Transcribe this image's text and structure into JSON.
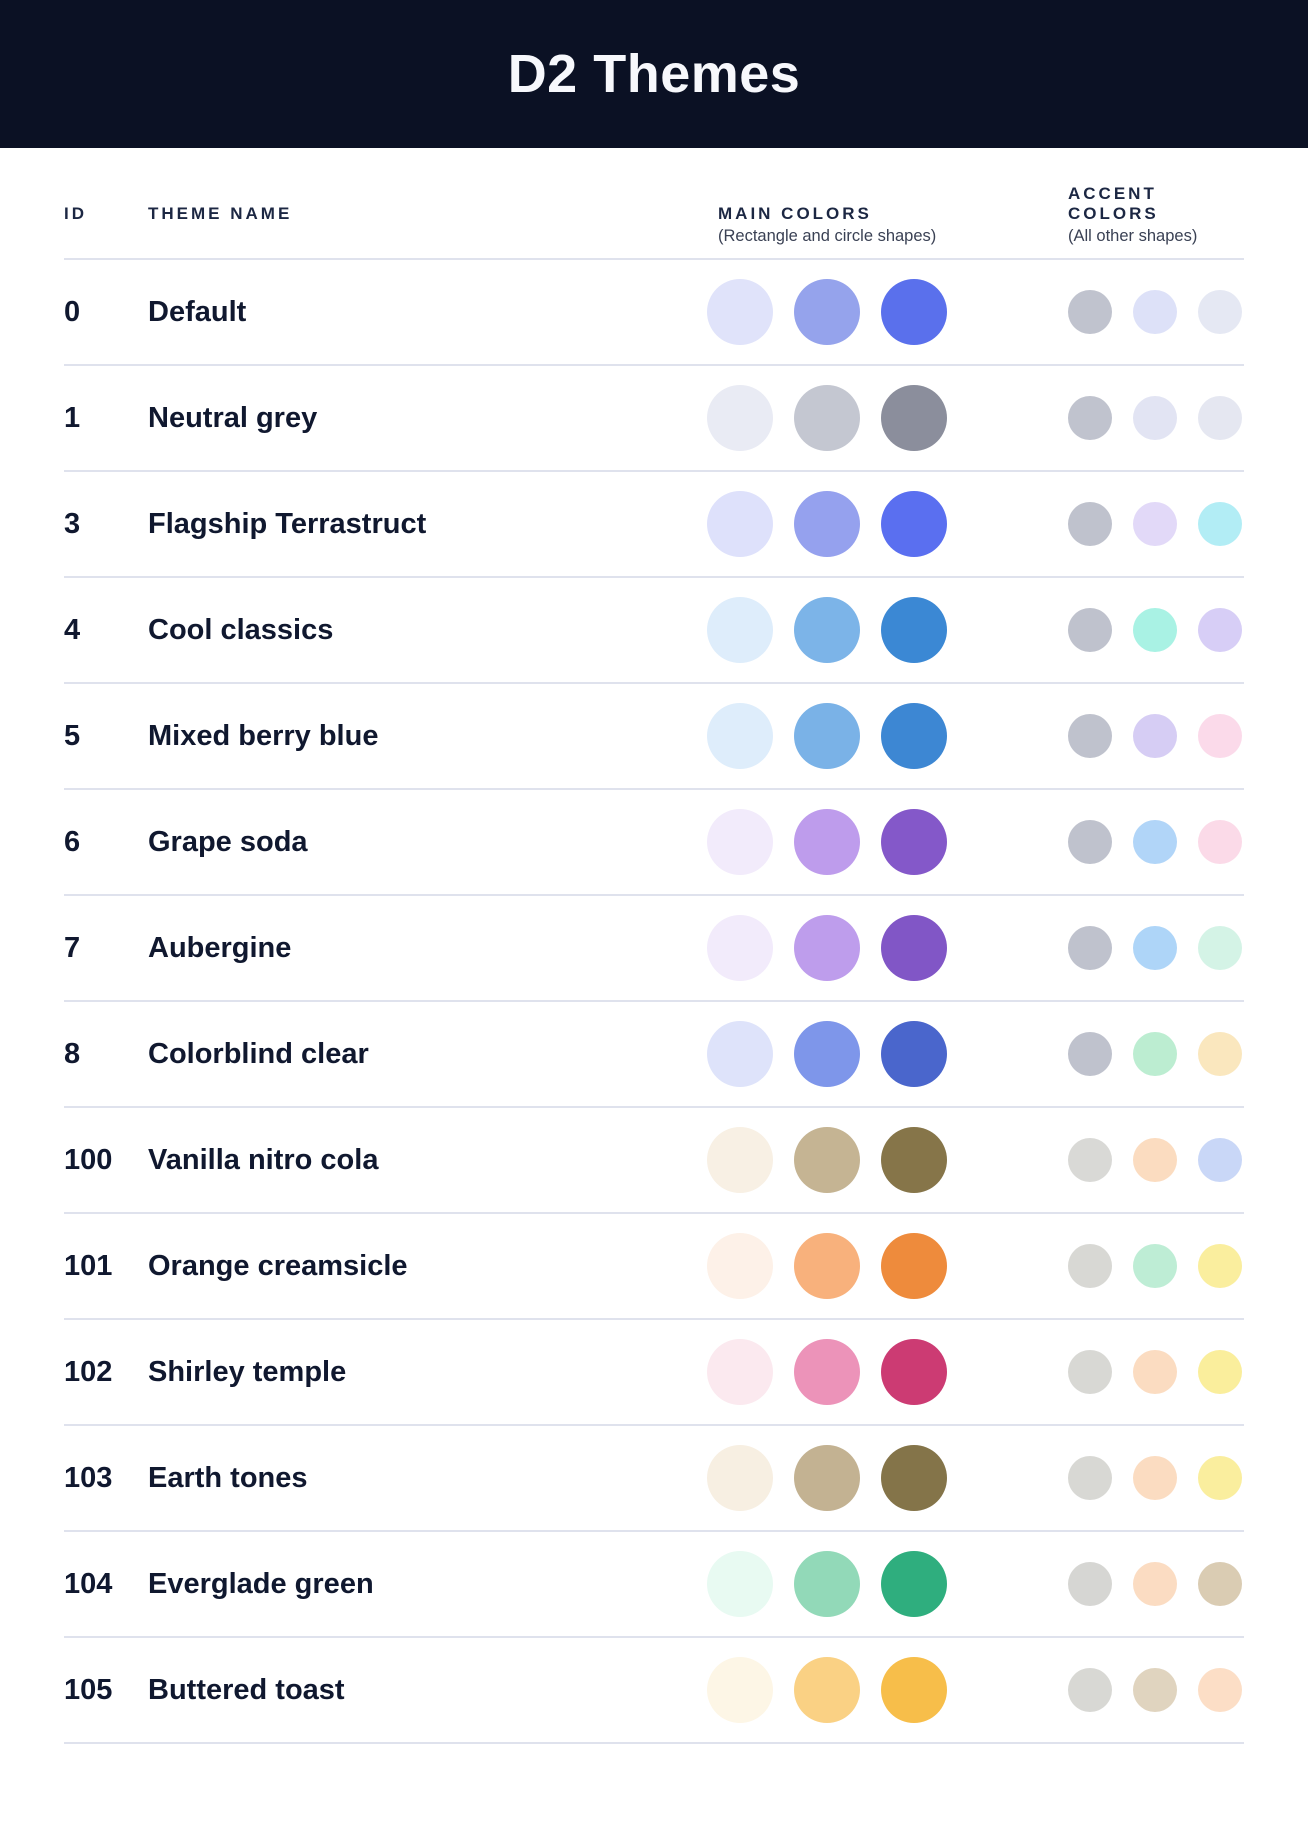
{
  "header": {
    "title": "D2 Themes"
  },
  "colors": {
    "header_bg": "#0B1124",
    "divider": "#DFE2ED",
    "row_text": "#10182F",
    "column_label_text": "#1C2743",
    "subtext": "#3A4154"
  },
  "table": {
    "columns": {
      "id_label": "ID",
      "name_label": "THEME NAME",
      "main_label": "MAIN COLORS",
      "main_sublabel": "(Rectangle and circle shapes)",
      "accent_label": "ACCENT COLORS",
      "accent_sublabel": "(All other shapes)"
    },
    "rows": [
      {
        "id": "0",
        "name": "Default",
        "main": [
          "#E0E3FA",
          "#95A3EC",
          "#5A70EC"
        ],
        "accent": [
          "#C0C3CE",
          "#DDE1F8",
          "#E5E8F3"
        ]
      },
      {
        "id": "1",
        "name": "Neutral grey",
        "main": [
          "#E9EBF4",
          "#C4C7D1",
          "#8B8E9C"
        ],
        "accent": [
          "#C0C3CE",
          "#E2E4F3",
          "#E5E7F1"
        ]
      },
      {
        "id": "3",
        "name": "Flagship Terrastruct",
        "main": [
          "#DEE1FB",
          "#95A1EE",
          "#5A6FF0"
        ],
        "accent": [
          "#BFC2CD",
          "#E2D9F8",
          "#B2EDF5"
        ]
      },
      {
        "id": "4",
        "name": "Cool classics",
        "main": [
          "#DEEDFB",
          "#7CB4E8",
          "#3B88D4"
        ],
        "accent": [
          "#BFC2CD",
          "#A9F2E4",
          "#D7CEF6"
        ]
      },
      {
        "id": "5",
        "name": "Mixed berry blue",
        "main": [
          "#DEEDFB",
          "#7AB2E7",
          "#3D87D3"
        ],
        "accent": [
          "#BFC2CD",
          "#D6CDF4",
          "#FBDAEA"
        ]
      },
      {
        "id": "6",
        "name": "Grape soda",
        "main": [
          "#F2EBFB",
          "#BE9CEC",
          "#8458C9"
        ],
        "accent": [
          "#BFC2CD",
          "#B1D5F8",
          "#FBDAE8"
        ]
      },
      {
        "id": "7",
        "name": "Aubergine",
        "main": [
          "#F2EBFB",
          "#BE9DEC",
          "#8156C6"
        ],
        "accent": [
          "#BFC2CD",
          "#AED5F8",
          "#D4F3E6"
        ]
      },
      {
        "id": "8",
        "name": "Colorblind clear",
        "main": [
          "#DEE3FA",
          "#7E96EA",
          "#4A66CC"
        ],
        "accent": [
          "#BFC2CD",
          "#BCEDD1",
          "#FAE7BE"
        ]
      },
      {
        "id": "100",
        "name": "Vanilla nitro cola",
        "main": [
          "#F8F0E4",
          "#C5B493",
          "#867549"
        ],
        "accent": [
          "#D9D9D6",
          "#FBDCC0",
          "#C9D7F7"
        ]
      },
      {
        "id": "101",
        "name": "Orange creamsicle",
        "main": [
          "#FDF1E8",
          "#F8B17C",
          "#EE8B3C"
        ],
        "accent": [
          "#D8D8D4",
          "#BEEDD5",
          "#FAEE9E"
        ]
      },
      {
        "id": "102",
        "name": "Shirley temple",
        "main": [
          "#FBE9EF",
          "#EC93B9",
          "#CC3B73"
        ],
        "accent": [
          "#D8D8D4",
          "#FBDCC1",
          "#FAEE9C"
        ]
      },
      {
        "id": "103",
        "name": "Earth tones",
        "main": [
          "#F7EFE2",
          "#C3B292",
          "#847449"
        ],
        "accent": [
          "#D8D8D4",
          "#FBDCC1",
          "#FAEE9E"
        ]
      },
      {
        "id": "104",
        "name": "Everglade green",
        "main": [
          "#E8FAF2",
          "#92D9B8",
          "#2FAE7E"
        ],
        "accent": [
          "#D6D6D3",
          "#FBDCC2",
          "#DACCB3"
        ]
      },
      {
        "id": "105",
        "name": "Buttered toast",
        "main": [
          "#FDF6E6",
          "#FAD184",
          "#F7BE4A"
        ],
        "accent": [
          "#D8D8D4",
          "#E0D4BF",
          "#FCDEC6"
        ]
      }
    ]
  }
}
